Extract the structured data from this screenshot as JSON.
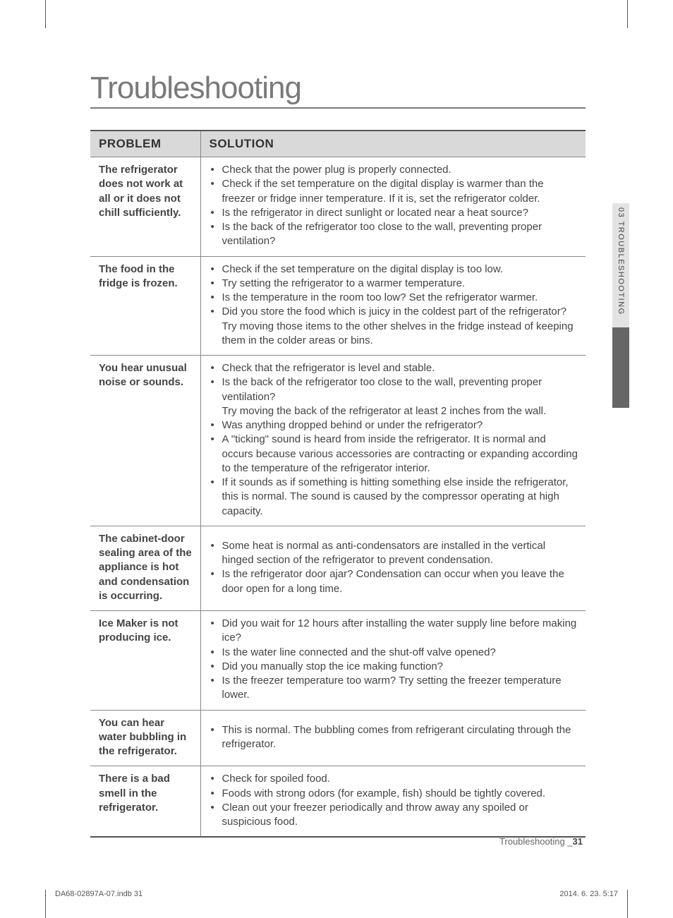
{
  "heading": "Troubleshooting",
  "table": {
    "headers": {
      "problem": "PROBLEM",
      "solution": "SOLUTION"
    },
    "rows": [
      {
        "problem": "The refrigerator does not work at all or it does not chill sufficiently.",
        "solutions": [
          "Check that the power plug is properly connected.",
          "Check if the set temperature on the digital display is warmer than the freezer or fridge inner temperature. If it is, set the refrigerator colder.",
          "Is the refrigerator in direct sunlight or located near a heat source?",
          "Is the back of the refrigerator too close to the wall, preventing proper ventilation?"
        ]
      },
      {
        "problem": "The food in the fridge is frozen.",
        "solutions": [
          "Check if the set temperature on the digital display is too low.",
          "Try setting the refrigerator to a warmer temperature.",
          "Is the temperature in the room too low? Set the refrigerator warmer.",
          "Did you store the food which is juicy in the coldest part of the refrigerator? Try moving those items to the other shelves in the fridge instead of keeping them in the colder areas or bins."
        ]
      },
      {
        "problem": "You hear unusual noise or sounds.",
        "solutions": [
          "Check that the refrigerator is level and stable.",
          "Is the back of the refrigerator too close to the wall, preventing proper ventilation?\nTry moving the back of the refrigerator at least 2 inches from the wall.",
          "Was anything dropped behind or under the refrigerator?",
          "A \"ticking\" sound is heard from inside the refrigerator. It is normal and occurs because various accessories are contracting or expanding according to the temperature of the refrigerator interior.",
          "If it sounds as if something is hitting something else inside the refrigerator, this is normal. The sound is caused by the compressor operating at high capacity."
        ]
      },
      {
        "problem": "The cabinet-door sealing area of the appliance is hot and condensation is occurring.",
        "solutions": [
          "Some heat is normal as anti-condensators are installed in the vertical hinged section of the refrigerator to prevent condensation.",
          "Is the refrigerator door ajar? Condensation can occur when you leave the door open for a long time."
        ]
      },
      {
        "problem": "Ice Maker is not producing ice.",
        "solutions": [
          "Did you wait for 12 hours after installing the water supply line before making ice?",
          "Is the water line connected and the shut-off valve opened?",
          "Did you manually stop the ice making function?",
          "Is the freezer temperature too warm? Try setting the freezer temperature lower."
        ]
      },
      {
        "problem": "You can hear water bubbling in the refrigerator.",
        "solutions": [
          "This is normal. The bubbling comes from refrigerant circulating through the refrigerator."
        ]
      },
      {
        "problem": "There is a bad smell in the refrigerator.",
        "solutions": [
          "Check for spoiled food.",
          "Foods with strong odors (for example, fish) should be tightly covered.",
          "Clean out your freezer periodically and throw away any spoiled or suspicious food."
        ]
      }
    ]
  },
  "sideTab": "03  TROUBLESHOOTING",
  "footer": {
    "section": "Troubleshooting _",
    "pageNum": "31",
    "printFile": "DA68-02897A-07.indb   31",
    "printDate": "2014. 6. 23.     5:17"
  }
}
